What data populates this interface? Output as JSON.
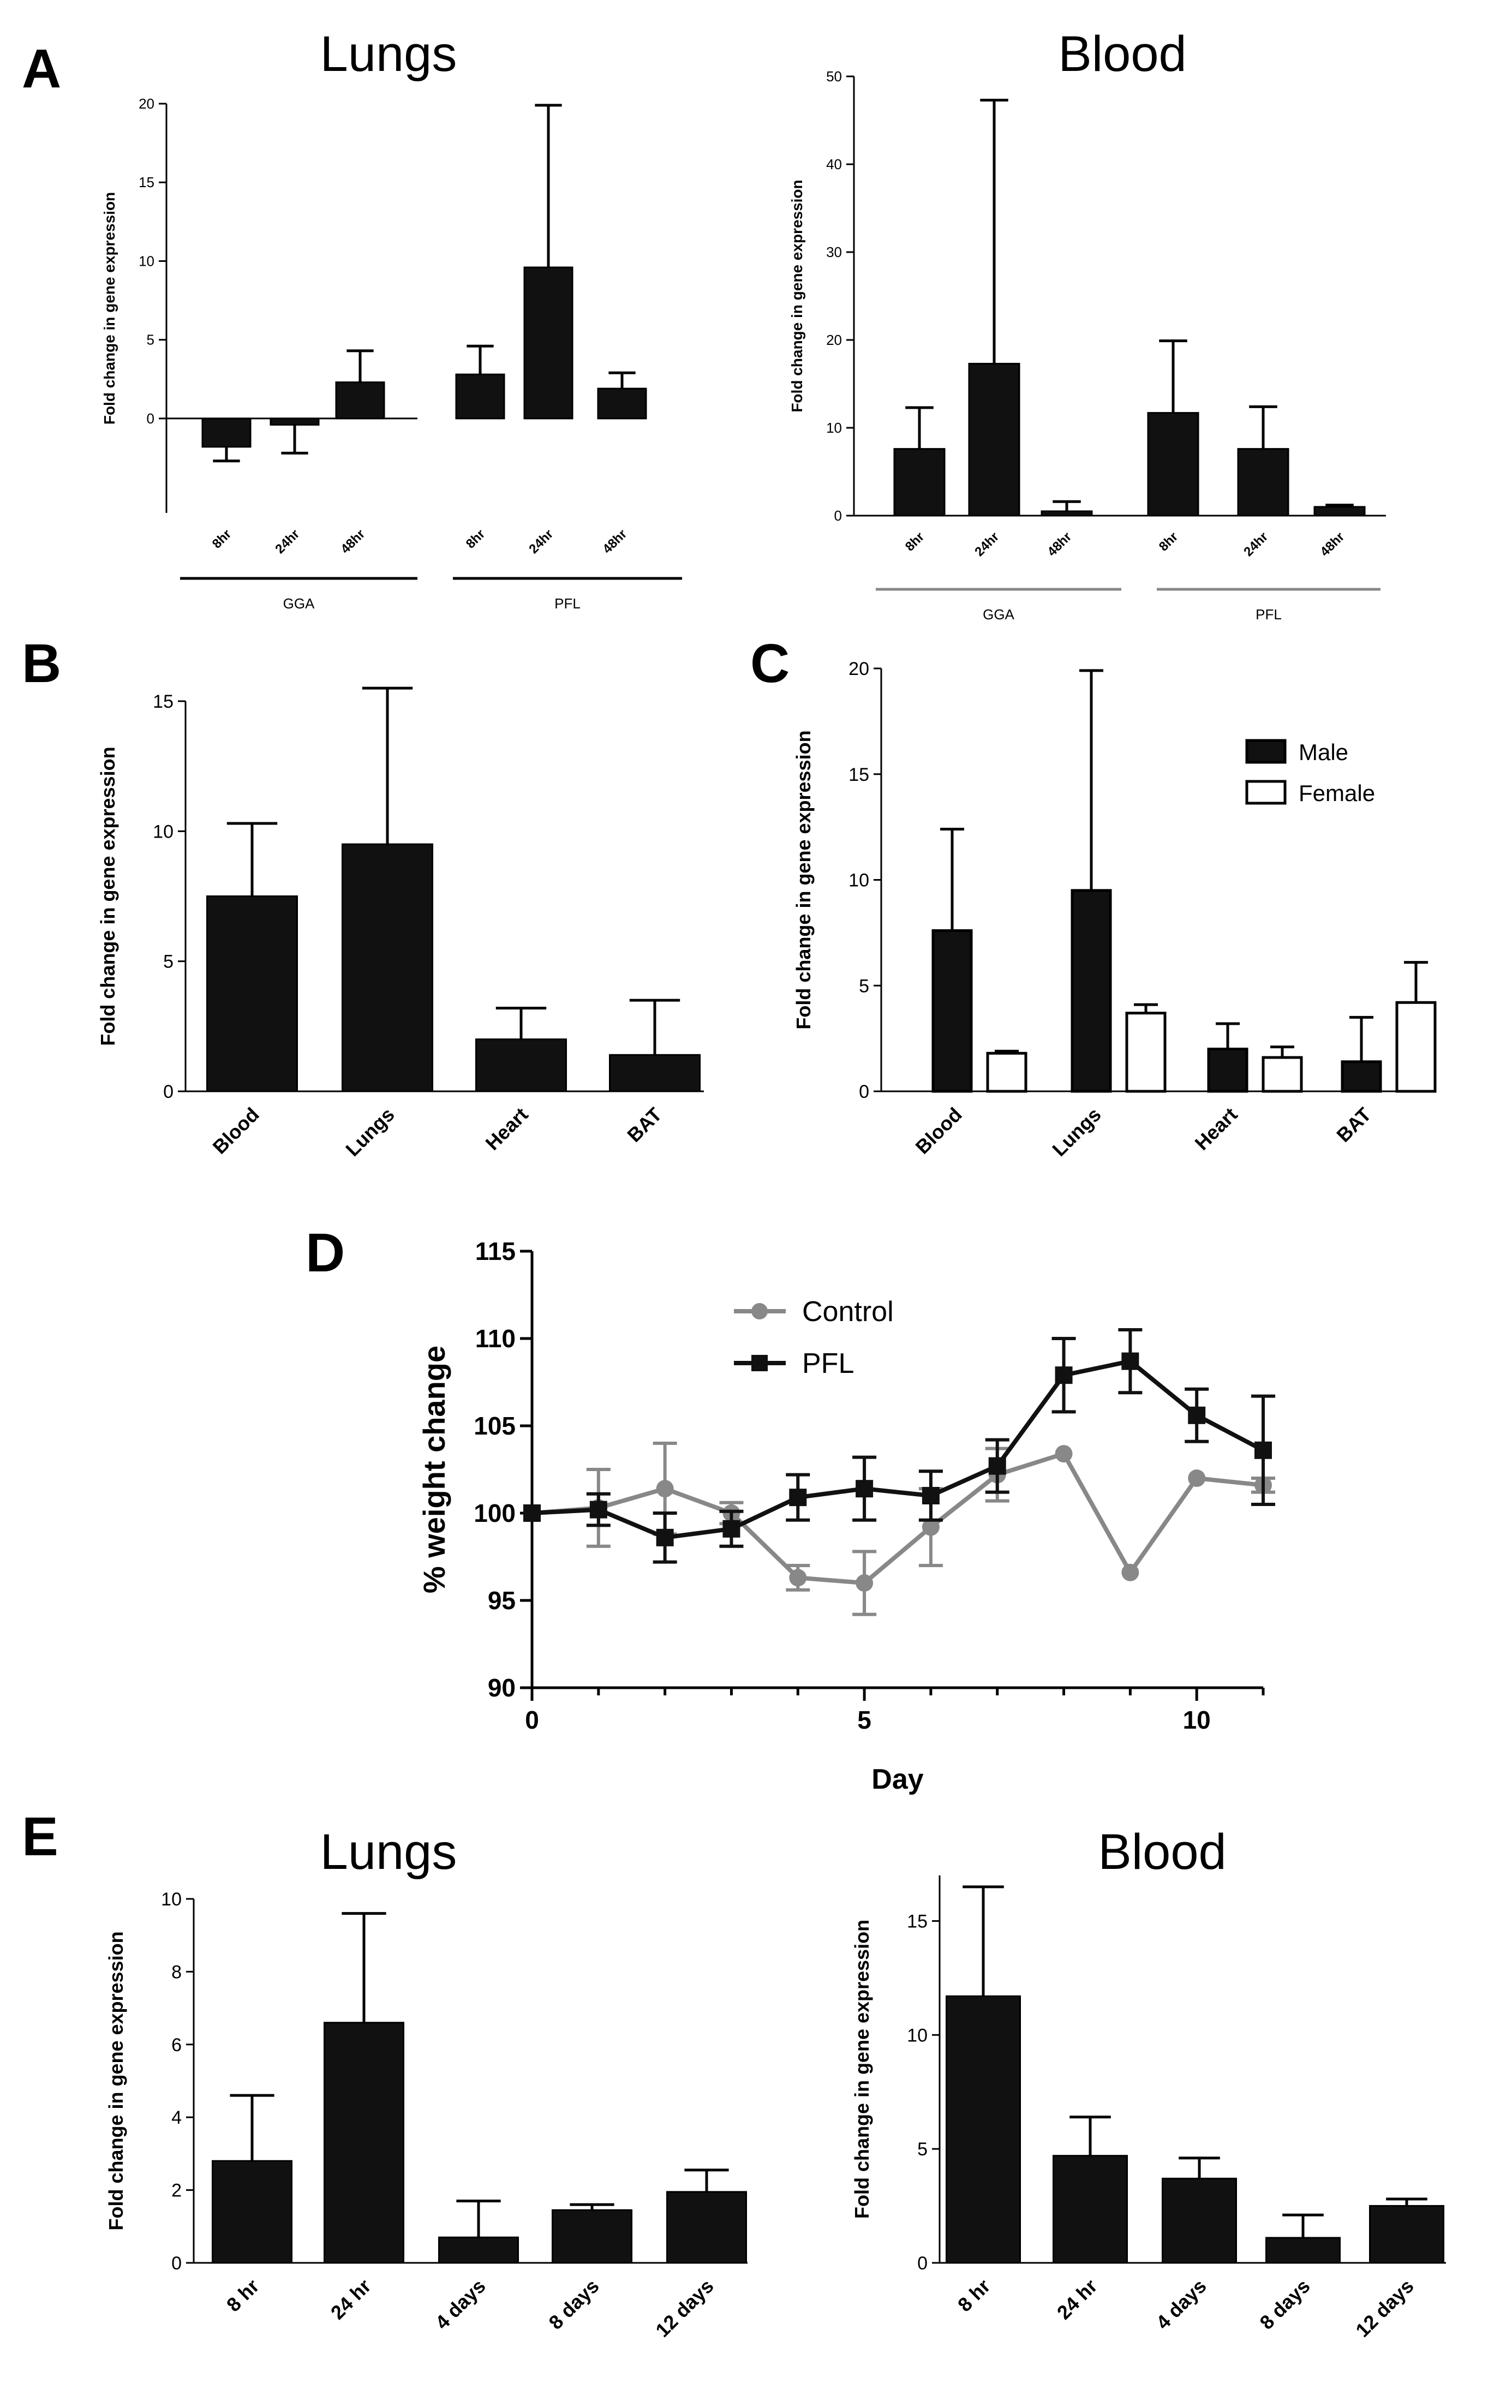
{
  "figure": {
    "panel_letters": [
      "A",
      "B",
      "C",
      "D",
      "E"
    ]
  },
  "chart_data": [
    {
      "id": "A1",
      "type": "bar",
      "title": "Lungs",
      "ylabel": "Fold change in gene expression",
      "xlabel": "",
      "ylim": [
        -6,
        20
      ],
      "yticks": [
        0,
        5,
        10,
        15,
        20
      ],
      "categories": [
        "8hr",
        "24hr",
        "48hr",
        "8hr",
        "24hr",
        "48hr"
      ],
      "groups": [
        "GGA",
        "PFL"
      ],
      "values": [
        -1.8,
        -0.4,
        2.3,
        2.8,
        9.6,
        1.9
      ],
      "error": [
        0.9,
        1.8,
        2.0,
        1.8,
        10.3,
        1.0
      ],
      "bar_color": "#111111"
    },
    {
      "id": "A2",
      "type": "bar",
      "title": "Blood",
      "ylabel": "Fold change in gene expression",
      "xlabel": "",
      "ylim": [
        0,
        50
      ],
      "yticks": [
        0,
        10,
        20,
        30,
        40,
        50
      ],
      "categories": [
        "8hr",
        "24hr",
        "48hr",
        "8hr",
        "24hr",
        "48hr"
      ],
      "groups": [
        "GGA",
        "PFL"
      ],
      "values": [
        7.6,
        17.3,
        0.5,
        11.7,
        7.6,
        1.0
      ],
      "error": [
        4.7,
        30.0,
        1.1,
        8.2,
        4.8,
        0.2
      ],
      "bar_color": "#111111"
    },
    {
      "id": "B",
      "type": "bar",
      "title": "",
      "ylabel": "Fold change in gene expression",
      "xlabel": "",
      "ylim": [
        0,
        15
      ],
      "yticks": [
        0,
        5,
        10,
        15
      ],
      "categories": [
        "Blood",
        "Lungs",
        "Heart",
        "BAT"
      ],
      "values": [
        7.5,
        9.5,
        2.0,
        1.4
      ],
      "error": [
        2.8,
        6.0,
        1.2,
        2.1
      ],
      "bar_color": "#111111"
    },
    {
      "id": "C",
      "type": "bar",
      "title": "",
      "ylabel": "Fold change in gene expression",
      "xlabel": "",
      "ylim": [
        0,
        20
      ],
      "yticks": [
        0,
        5,
        10,
        15,
        20
      ],
      "categories": [
        "Blood",
        "Lungs",
        "Heart",
        "BAT"
      ],
      "series": [
        {
          "name": "Male",
          "values": [
            7.6,
            9.5,
            2.0,
            1.4
          ],
          "error": [
            4.8,
            10.4,
            1.2,
            2.1
          ],
          "color": "#111111"
        },
        {
          "name": "Female",
          "values": [
            1.8,
            3.7,
            1.6,
            4.2
          ],
          "error": [
            0.1,
            0.4,
            0.5,
            1.9
          ],
          "color": "#ffffff"
        }
      ],
      "legend": "top-right"
    },
    {
      "id": "D",
      "type": "line",
      "title": "",
      "xlabel": "Day",
      "ylabel": "% weight change",
      "xlim": [
        0,
        11
      ],
      "ylim": [
        90,
        115
      ],
      "xticks": [
        0,
        5,
        10
      ],
      "yticks": [
        90,
        95,
        100,
        105,
        110,
        115
      ],
      "x": [
        0,
        1,
        2,
        3,
        4,
        5,
        6,
        7,
        8,
        9,
        10,
        11
      ],
      "series": [
        {
          "name": "Control",
          "color": "#888888",
          "marker": "circle",
          "values": [
            100,
            100.3,
            101.4,
            100,
            96.3,
            96,
            99.2,
            102.2,
            103.4,
            96.6,
            102,
            101.6
          ],
          "error": [
            0,
            2.2,
            2.6,
            0.6,
            0.7,
            1.8,
            2.2,
            1.5,
            0,
            0,
            0,
            0.4
          ]
        },
        {
          "name": "PFL",
          "color": "#111111",
          "marker": "square",
          "values": [
            100,
            100.2,
            98.6,
            99.1,
            100.9,
            101.4,
            101,
            102.7,
            107.9,
            108.7,
            105.6,
            103.6
          ],
          "error": [
            0,
            0.9,
            1.4,
            1.0,
            1.3,
            1.8,
            1.4,
            1.5,
            2.1,
            1.8,
            1.5,
            3.1
          ]
        }
      ],
      "legend": "top-left"
    },
    {
      "id": "E1",
      "type": "bar",
      "title": "Lungs",
      "ylabel": "Fold change in gene expression",
      "xlabel": "",
      "ylim": [
        0,
        10
      ],
      "yticks": [
        0,
        2,
        4,
        6,
        8,
        10
      ],
      "categories": [
        "8 hr",
        "24 hr",
        "4 days",
        "8 days",
        "12 days"
      ],
      "values": [
        2.8,
        6.6,
        0.7,
        1.45,
        1.95
      ],
      "error": [
        1.8,
        3.0,
        1.0,
        0.15,
        0.6
      ],
      "bar_color": "#111111"
    },
    {
      "id": "E2",
      "type": "bar",
      "title": "Blood",
      "ylabel": "Fold change in gene expression",
      "xlabel": "",
      "ylim": [
        0,
        17
      ],
      "yticks": [
        0,
        5,
        10,
        15
      ],
      "categories": [
        "8 hr",
        "24 hr",
        "4 days",
        "8 days",
        "12 days"
      ],
      "values": [
        11.7,
        4.7,
        3.7,
        1.1,
        2.5
      ],
      "error": [
        4.8,
        1.7,
        0.9,
        1.0,
        0.3
      ],
      "bar_color": "#111111"
    }
  ]
}
